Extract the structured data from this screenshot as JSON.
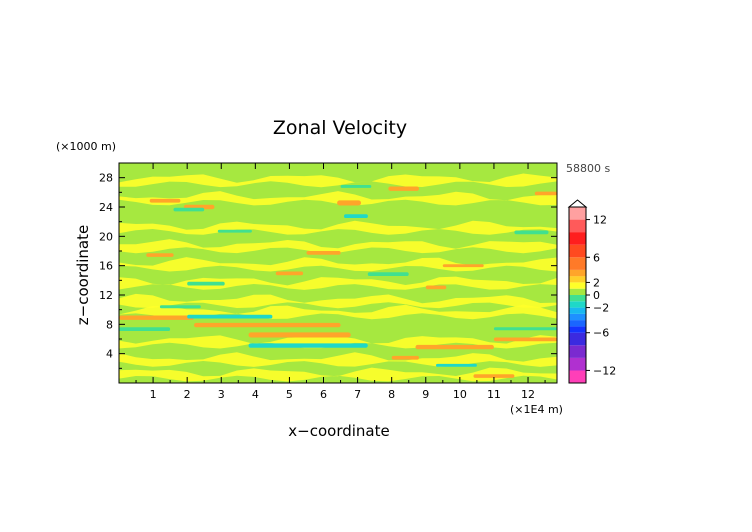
{
  "chart_data": {
    "type": "heatmap",
    "title": "Zonal Velocity",
    "xlabel": "x−coordinate",
    "ylabel": "z−coordinate",
    "x_unit": "(×1E4 m)",
    "y_unit": "(×1000 m)",
    "time_label": "58800 s",
    "xlim": [
      0,
      12.85
    ],
    "ylim": [
      0,
      30
    ],
    "x_ticks": [
      "1",
      "2",
      "3",
      "4",
      "5",
      "6",
      "7",
      "8",
      "9",
      "10",
      "11",
      "12"
    ],
    "y_ticks": [
      "4",
      "8",
      "12",
      "16",
      "20",
      "24",
      "28"
    ],
    "grid": false,
    "colorbar": {
      "position": "right",
      "tick_labels": [
        "12",
        "6",
        "2",
        "0",
        "−2",
        "−6",
        "−12"
      ],
      "levels": [
        {
          "from": -14,
          "to": -12,
          "color": "#ff3fb8"
        },
        {
          "from": -12,
          "to": -10,
          "color": "#b030d0"
        },
        {
          "from": -10,
          "to": -8,
          "color": "#7a2ad0"
        },
        {
          "from": -8,
          "to": -6,
          "color": "#3b2ae0"
        },
        {
          "from": -6,
          "to": -5,
          "color": "#1433ff"
        },
        {
          "from": -5,
          "to": -4,
          "color": "#1a66ff"
        },
        {
          "from": -4,
          "to": -3,
          "color": "#1e90ff"
        },
        {
          "from": -3,
          "to": -2,
          "color": "#19b8f0"
        },
        {
          "from": -2,
          "to": -1,
          "color": "#1ed8c8"
        },
        {
          "from": -1,
          "to": 0,
          "color": "#40e090"
        },
        {
          "from": 0,
          "to": 1,
          "color": "#a6e840"
        },
        {
          "from": 1,
          "to": 2,
          "color": "#ffff2a"
        },
        {
          "from": 2,
          "to": 3,
          "color": "#ffd02a"
        },
        {
          "from": 3,
          "to": 4,
          "color": "#ffa52a"
        },
        {
          "from": 4,
          "to": 6,
          "color": "#ff7a28"
        },
        {
          "from": 6,
          "to": 8,
          "color": "#ff4a20"
        },
        {
          "from": 8,
          "to": 10,
          "color": "#ff1e1e"
        },
        {
          "from": 10,
          "to": 12,
          "color": "#ff5a5a"
        },
        {
          "from": 12,
          "to": 14,
          "color": "#ffa0a0"
        }
      ]
    },
    "field": {
      "description_free": true,
      "background_value": 0.5,
      "features": [
        {
          "x": [
            0.0,
            2.2
          ],
          "z": [
            8.6,
            9.2
          ],
          "value": 3.5
        },
        {
          "x": [
            2.2,
            6.5
          ],
          "z": [
            7.6,
            8.2
          ],
          "value": 3.0
        },
        {
          "x": [
            2.0,
            4.5
          ],
          "z": [
            8.8,
            9.3
          ],
          "value": -1.5
        },
        {
          "x": [
            3.8,
            6.8
          ],
          "z": [
            6.2,
            6.9
          ],
          "value": 3.0
        },
        {
          "x": [
            3.8,
            7.3
          ],
          "z": [
            4.8,
            5.4
          ],
          "value": -1.5
        },
        {
          "x": [
            0.0,
            1.5
          ],
          "z": [
            7.1,
            7.6
          ],
          "value": -1.0
        },
        {
          "x": [
            8.7,
            11.0
          ],
          "z": [
            4.6,
            5.2
          ],
          "value": 3.0
        },
        {
          "x": [
            11.0,
            12.85
          ],
          "z": [
            5.7,
            6.2
          ],
          "value": 3.0
        },
        {
          "x": [
            11.0,
            12.85
          ],
          "z": [
            7.2,
            7.6
          ],
          "value": -1.0
        },
        {
          "x": [
            9.3,
            10.5
          ],
          "z": [
            2.2,
            2.6
          ],
          "value": -1.5
        },
        {
          "x": [
            6.6,
            7.3
          ],
          "z": [
            22.5,
            23.0
          ],
          "value": -2.0
        },
        {
          "x": [
            6.4,
            7.1
          ],
          "z": [
            24.2,
            24.9
          ],
          "value": 3.5
        },
        {
          "x": [
            7.9,
            8.8
          ],
          "z": [
            26.2,
            26.8
          ],
          "value": 3.0
        },
        {
          "x": [
            6.5,
            7.4
          ],
          "z": [
            26.6,
            27.0
          ],
          "value": -1.0
        },
        {
          "x": [
            1.9,
            2.8
          ],
          "z": [
            23.7,
            24.3
          ],
          "value": 3.0
        },
        {
          "x": [
            0.9,
            1.8
          ],
          "z": [
            24.6,
            25.1
          ],
          "value": 3.0
        },
        {
          "x": [
            1.6,
            2.5
          ],
          "z": [
            23.4,
            23.9
          ],
          "value": -1.0
        },
        {
          "x": [
            2.9,
            3.9
          ],
          "z": [
            20.5,
            20.9
          ],
          "value": -1.0
        },
        {
          "x": [
            5.5,
            6.5
          ],
          "z": [
            17.5,
            18.0
          ],
          "value": 3.0
        },
        {
          "x": [
            0.8,
            1.6
          ],
          "z": [
            17.2,
            17.7
          ],
          "value": 3.0
        },
        {
          "x": [
            7.3,
            8.5
          ],
          "z": [
            14.6,
            15.1
          ],
          "value": -1.0
        },
        {
          "x": [
            9.5,
            10.7
          ],
          "z": [
            15.8,
            16.2
          ],
          "value": 3.0
        },
        {
          "x": [
            11.6,
            12.6
          ],
          "z": [
            20.3,
            20.8
          ],
          "value": -1.0
        },
        {
          "x": [
            12.2,
            12.85
          ],
          "z": [
            25.6,
            26.1
          ],
          "value": 3.0
        },
        {
          "x": [
            4.6,
            5.4
          ],
          "z": [
            14.7,
            15.2
          ],
          "value": 3.0
        },
        {
          "x": [
            9.0,
            9.6
          ],
          "z": [
            12.8,
            13.3
          ],
          "value": 3.0
        },
        {
          "x": [
            2.0,
            3.1
          ],
          "z": [
            13.3,
            13.8
          ],
          "value": -1.0
        },
        {
          "x": [
            8.0,
            8.8
          ],
          "z": [
            3.2,
            3.7
          ],
          "value": 3.0
        },
        {
          "x": [
            10.4,
            11.6
          ],
          "z": [
            0.7,
            1.2
          ],
          "value": 3.0
        },
        {
          "x": [
            1.2,
            2.4
          ],
          "z": [
            10.2,
            10.6
          ],
          "value": -1.0
        }
      ]
    }
  }
}
